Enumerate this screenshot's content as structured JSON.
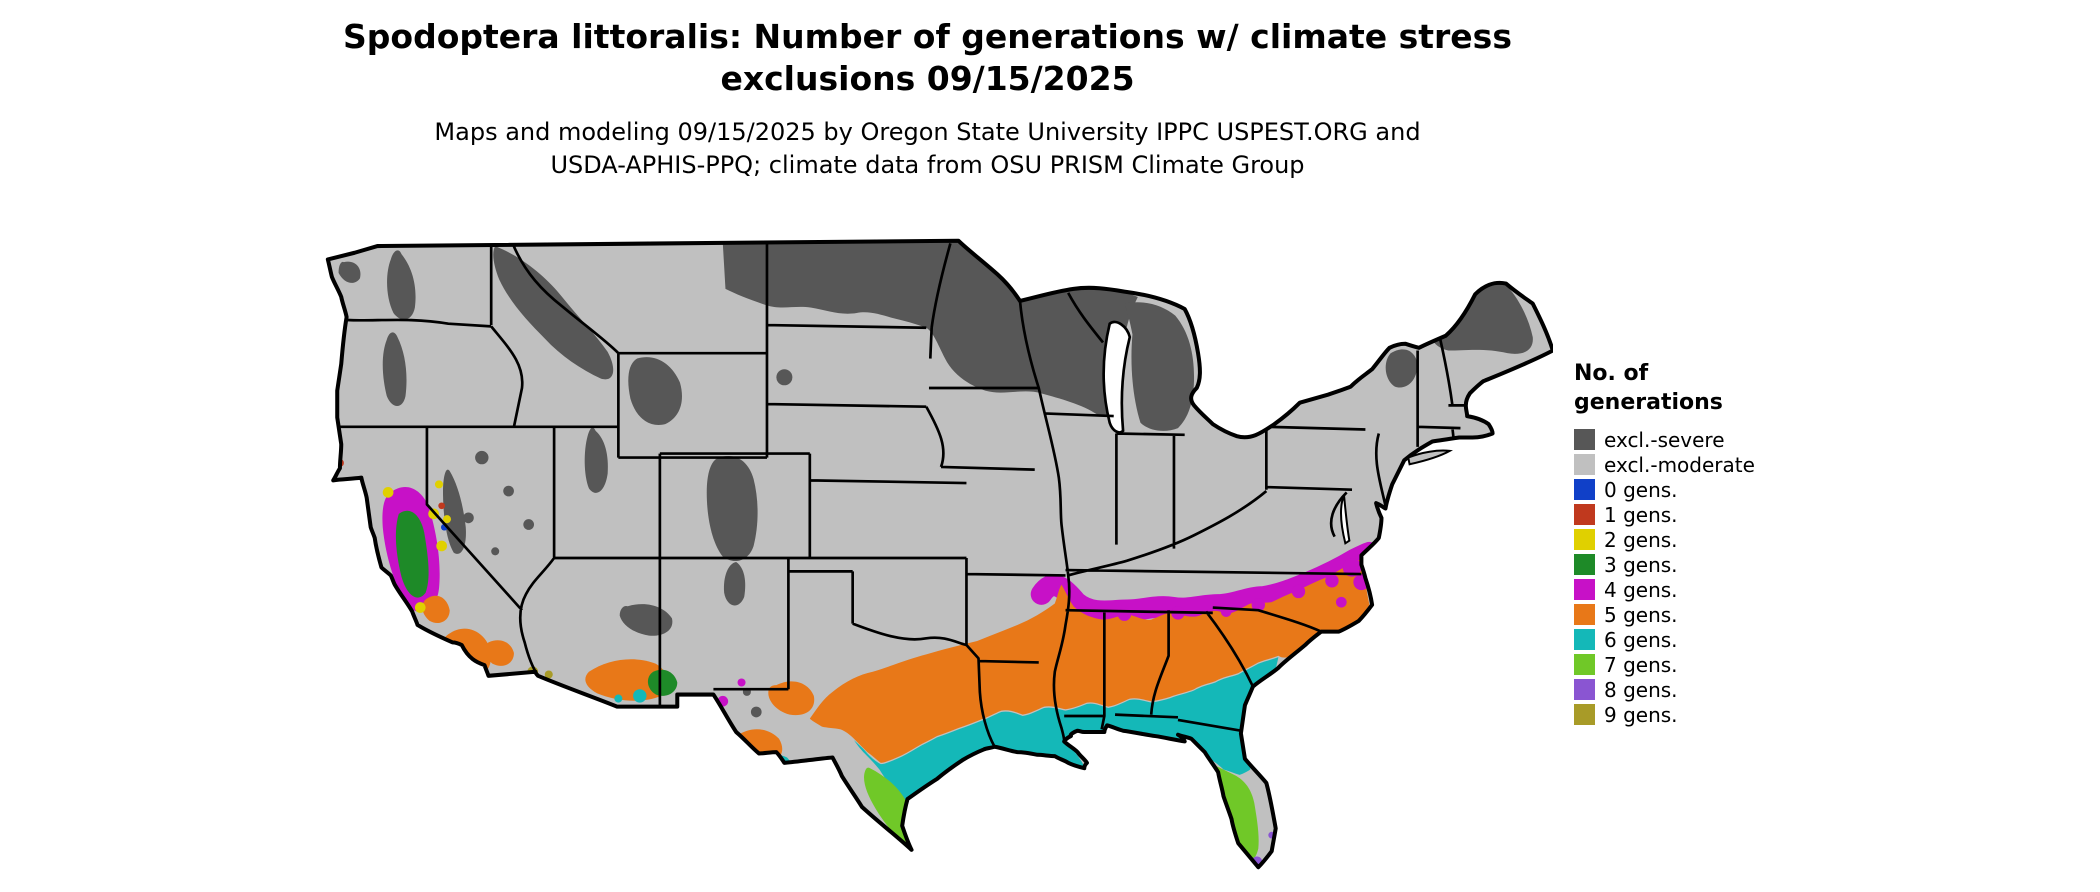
{
  "title": {
    "line1": "Spodoptera littoralis: Number of generations w/ climate stress",
    "line2": "exclusions 09/15/2025"
  },
  "subtitle": {
    "line1": "Maps and modeling 09/15/2025 by Oregon State University IPPC USPEST.ORG and",
    "line2": "USDA-APHIS-PPQ; climate data from OSU PRISM Climate Group"
  },
  "legend": {
    "title_line1": "No. of",
    "title_line2": "generations",
    "items": [
      {
        "label": "excl.-severe",
        "color": "#575757"
      },
      {
        "label": "excl.-moderate",
        "color": "#c0c0c0"
      },
      {
        "label": "0 gens.",
        "color": "#1040c8"
      },
      {
        "label": "1 gens.",
        "color": "#c0391e"
      },
      {
        "label": "2 gens.",
        "color": "#e0d000"
      },
      {
        "label": "3 gens.",
        "color": "#1e8a28"
      },
      {
        "label": "4 gens.",
        "color": "#c711c7"
      },
      {
        "label": "5 gens.",
        "color": "#e87818"
      },
      {
        "label": "6 gens.",
        "color": "#14b8b8"
      },
      {
        "label": "7 gens.",
        "color": "#70c828"
      },
      {
        "label": "8 gens.",
        "color": "#8a55d2"
      },
      {
        "label": "9 gens.",
        "color": "#a89b28"
      }
    ]
  },
  "map_colors": {
    "base": "#c0c0c0",
    "border": "#000000",
    "background": "#ffffff"
  }
}
